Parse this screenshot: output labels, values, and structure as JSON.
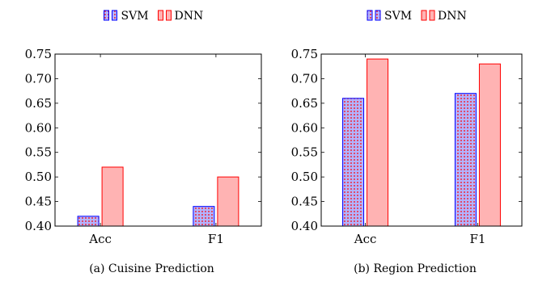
{
  "chart_data": [
    {
      "type": "bar",
      "caption": "(a) Cuisine Prediction",
      "categories": [
        "Acc",
        "F1"
      ],
      "series": [
        {
          "name": "SVM",
          "values": [
            0.42,
            0.44
          ]
        },
        {
          "name": "DNN",
          "values": [
            0.52,
            0.5
          ]
        }
      ],
      "ylim": [
        0.4,
        0.75
      ],
      "yticks": [
        "0.40",
        "0.45",
        "0.50",
        "0.55",
        "0.60",
        "0.65",
        "0.70",
        "0.75"
      ],
      "legend_position": "top-center",
      "grid": false
    },
    {
      "type": "bar",
      "caption": "(b) Region Prediction",
      "categories": [
        "Acc",
        "F1"
      ],
      "series": [
        {
          "name": "SVM",
          "values": [
            0.66,
            0.67
          ]
        },
        {
          "name": "DNN",
          "values": [
            0.74,
            0.73
          ]
        }
      ],
      "ylim": [
        0.4,
        0.75
      ],
      "yticks": [
        "0.40",
        "0.45",
        "0.50",
        "0.55",
        "0.60",
        "0.65",
        "0.70",
        "0.75"
      ],
      "legend_position": "top-center",
      "grid": false
    }
  ],
  "styles": {
    "svm": {
      "fill": "#b3b3ff",
      "stroke": "#0000ff",
      "dots": "#ff0000"
    },
    "dnn": {
      "fill": "#ffb3b3",
      "stroke": "#ff0000"
    }
  }
}
